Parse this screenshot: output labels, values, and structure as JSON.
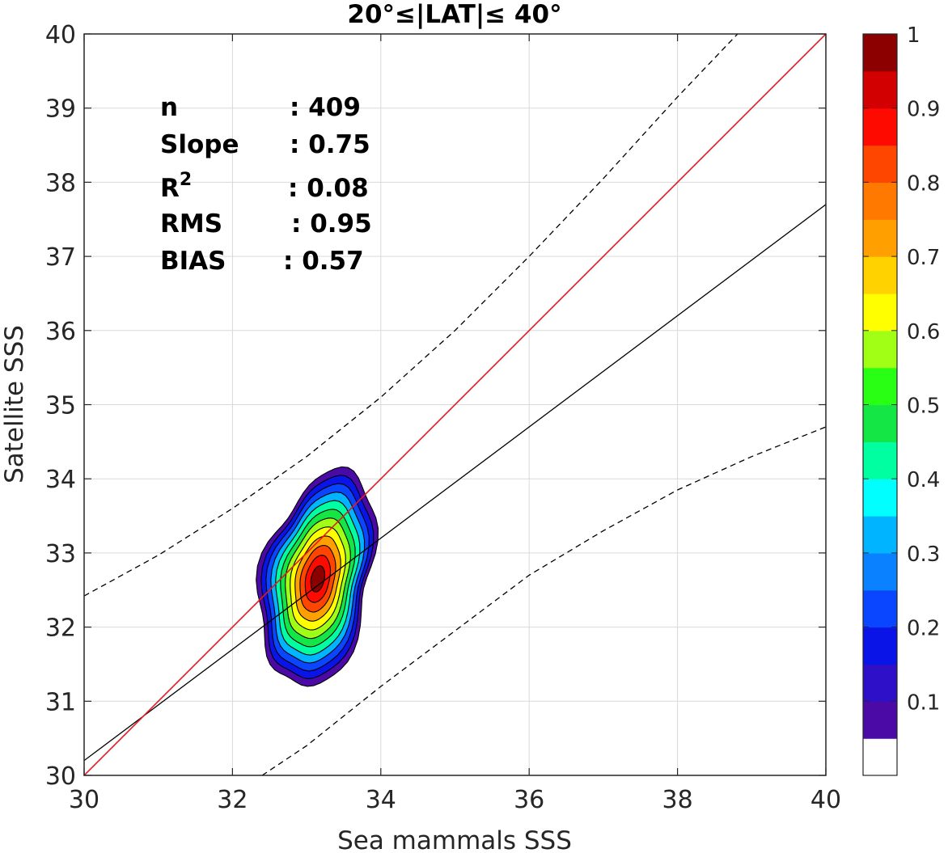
{
  "chart_data": {
    "type": "contour",
    "title": "20°≤|LAT|≤ 40°",
    "xlabel": "Sea mammals SSS",
    "ylabel": "Satellite SSS",
    "xlim": [
      30,
      40
    ],
    "ylim": [
      30,
      40
    ],
    "xticks": [
      "30",
      "32",
      "34",
      "36",
      "38",
      "40"
    ],
    "yticks": [
      "30",
      "31",
      "32",
      "33",
      "34",
      "35",
      "36",
      "37",
      "38",
      "39",
      "40"
    ],
    "grid": true,
    "stats": [
      {
        "name": "n",
        "sep": ": ",
        "value": "409"
      },
      {
        "name": "Slope",
        "sep": ": ",
        "value": "0.75"
      },
      {
        "name": "R",
        "sup": "2",
        "sep": ": ",
        "value": "0.08"
      },
      {
        "name": "RMS",
        "sep": ": ",
        "value": "0.95"
      },
      {
        "name": "BIAS",
        "sep": ": ",
        "value": "0.57"
      }
    ],
    "one_to_one_line": {
      "color": "#e41a1c",
      "x": [
        30,
        40
      ],
      "y": [
        30,
        40
      ]
    },
    "regression_line": {
      "color": "#000000",
      "x": [
        30,
        40
      ],
      "y": [
        30.2,
        37.7
      ]
    },
    "dashed_bounds": {
      "upper": [
        [
          30,
          32.42
        ],
        [
          31,
          32.97
        ],
        [
          32,
          33.6
        ],
        [
          33,
          34.3
        ],
        [
          34,
          35.1
        ],
        [
          35,
          36.0
        ],
        [
          36,
          37.0
        ],
        [
          37,
          38.05
        ],
        [
          38,
          39.15
        ],
        [
          39,
          40.2
        ]
      ],
      "lower": [
        [
          32.4,
          30
        ],
        [
          33,
          30.4
        ],
        [
          34,
          31.2
        ],
        [
          35,
          31.95
        ],
        [
          36,
          32.7
        ],
        [
          37,
          33.3
        ],
        [
          38,
          33.85
        ],
        [
          39,
          34.3
        ],
        [
          40,
          34.7
        ]
      ]
    },
    "density_peak": {
      "x": 33.15,
      "y": 32.65
    },
    "contour_levels": [
      0.05,
      0.1,
      0.2,
      0.3,
      0.4,
      0.5,
      0.6,
      0.7,
      0.8,
      0.9
    ],
    "colorbar": {
      "ticks": [
        "0.1",
        "0.2",
        "0.3",
        "0.4",
        "0.5",
        "0.6",
        "0.7",
        "0.8",
        "0.9",
        "1"
      ],
      "colors": [
        "#ffffff",
        "#4b0aa6",
        "#2d10c8",
        "#0a14e6",
        "#0a46ff",
        "#0a82ff",
        "#00b4ff",
        "#00ffff",
        "#00ffa0",
        "#14e646",
        "#28ff14",
        "#a0ff14",
        "#ffff00",
        "#ffd200",
        "#ffa000",
        "#ff7800",
        "#ff4600",
        "#ff0a00",
        "#d20000",
        "#8c0000"
      ]
    }
  }
}
